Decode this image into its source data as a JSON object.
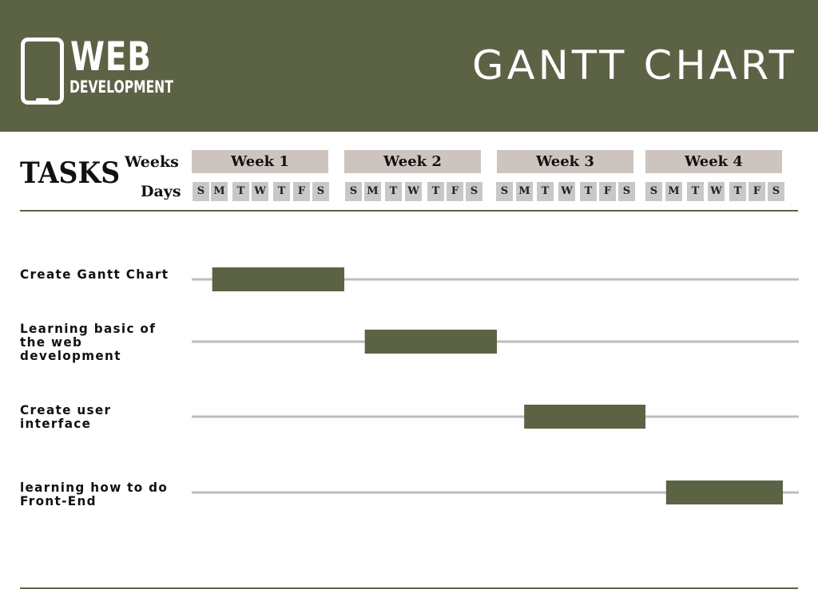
{
  "header": {
    "logo_top": "WEB",
    "logo_bottom": "DEVELOPMENT",
    "title": "GANTT CHART",
    "logo_icon": "smartphone-icon",
    "background_color": "#5b6344"
  },
  "timeline": {
    "tasks_heading": "TASKS",
    "weeks_label": "Weeks",
    "days_label": "Days",
    "weeks": [
      "Week 1",
      "Week 2",
      "Week 3",
      "Week 4"
    ],
    "days": [
      "S",
      "M",
      "T",
      "W",
      "T",
      "F",
      "S"
    ]
  },
  "chart_data": {
    "type": "gantt",
    "title": "GANTT CHART",
    "x_unit": "week",
    "x_range": [
      0,
      4
    ],
    "bar_color": "#5b6344",
    "track_color": "#bdbdbd",
    "tasks": [
      {
        "name": "Create Gantt Chart",
        "start": 0.15,
        "end": 1.0
      },
      {
        "name": "Learning basic of the web development",
        "start": 1.15,
        "end": 2.0
      },
      {
        "name": "Create user interface",
        "start": 2.2,
        "end": 3.0
      },
      {
        "name": "learning how to do Front-End",
        "start": 3.15,
        "end": 4.0
      }
    ]
  }
}
